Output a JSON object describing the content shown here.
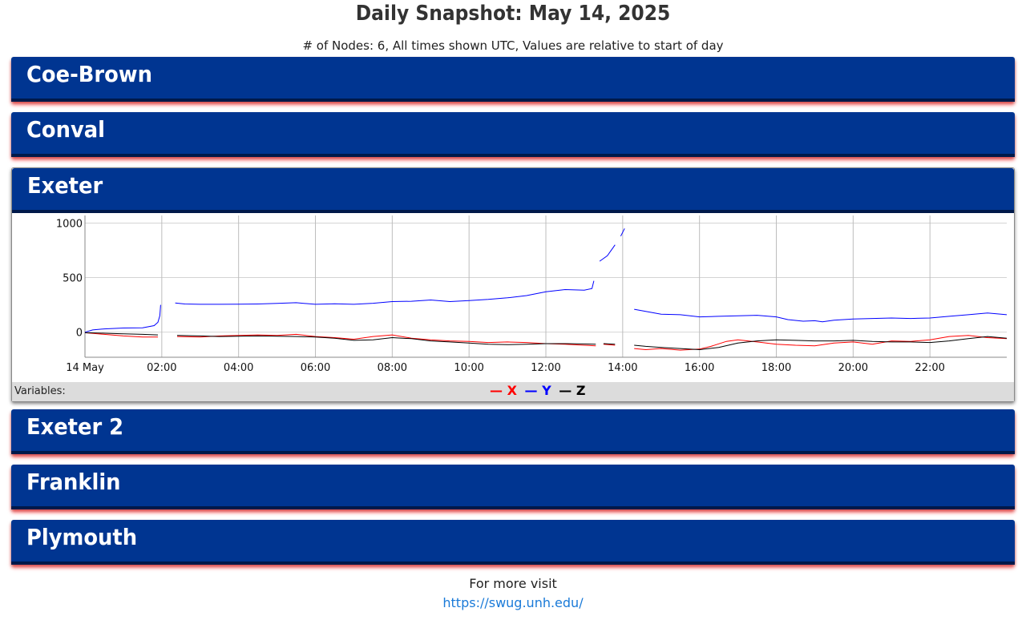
{
  "page": {
    "title": "Daily Snapshot: May 14, 2025",
    "subtitle": "# of Nodes: 6, All times shown UTC, Values are relative to start of day"
  },
  "panels": [
    {
      "name": "Coe-Brown"
    },
    {
      "name": "Conval"
    },
    {
      "name": "Exeter"
    },
    {
      "name": "Exeter 2"
    },
    {
      "name": "Franklin"
    },
    {
      "name": "Plymouth"
    }
  ],
  "legend": {
    "label": "Variables:",
    "items": [
      {
        "name": "X",
        "color": "#ff0000"
      },
      {
        "name": "Y",
        "color": "#0000ff"
      },
      {
        "name": "Z",
        "color": "#000000"
      }
    ]
  },
  "chart_data": {
    "type": "line",
    "xlabel": "",
    "ylabel": "",
    "xlim": [
      0,
      24
    ],
    "ylim": [
      -230,
      1040
    ],
    "y_ticks": [
      0,
      500,
      1000
    ],
    "x_tick_values": [
      0,
      2,
      4,
      6,
      8,
      10,
      12,
      14,
      16,
      18,
      20,
      22
    ],
    "x_tick_labels": [
      "14 May",
      "02:00",
      "04:00",
      "06:00",
      "08:00",
      "10:00",
      "12:00",
      "14:00",
      "16:00",
      "18:00",
      "20:00",
      "22:00"
    ],
    "grid": true,
    "series": [
      {
        "name": "Y",
        "color": "#0000ff",
        "segments": [
          [
            [
              0.0,
              0
            ],
            [
              0.2,
              20
            ],
            [
              0.5,
              30
            ],
            [
              1.0,
              38
            ],
            [
              1.5,
              40
            ],
            [
              1.8,
              60
            ],
            [
              1.9,
              90
            ],
            [
              1.95,
              150
            ],
            [
              1.97,
              250
            ]
          ],
          [
            [
              2.35,
              268
            ],
            [
              2.6,
              258
            ],
            [
              3.0,
              255
            ],
            [
              3.5,
              255
            ],
            [
              4.0,
              257
            ],
            [
              4.5,
              258
            ],
            [
              5.0,
              263
            ],
            [
              5.5,
              270
            ],
            [
              6.0,
              255
            ],
            [
              6.5,
              260
            ],
            [
              7.0,
              255
            ],
            [
              7.5,
              265
            ],
            [
              8.0,
              280
            ],
            [
              8.5,
              283
            ],
            [
              9.0,
              295
            ],
            [
              9.5,
              280
            ],
            [
              10.0,
              290
            ],
            [
              10.5,
              300
            ],
            [
              11.0,
              315
            ],
            [
              11.5,
              335
            ],
            [
              12.0,
              370
            ],
            [
              12.5,
              390
            ],
            [
              13.0,
              385
            ],
            [
              13.2,
              400
            ],
            [
              13.25,
              470
            ]
          ],
          [
            [
              13.4,
              650
            ],
            [
              13.6,
              700
            ],
            [
              13.8,
              800
            ]
          ],
          [
            [
              13.95,
              880
            ],
            [
              14.05,
              950
            ]
          ],
          [
            [
              14.3,
              210
            ],
            [
              14.6,
              190
            ],
            [
              15.0,
              165
            ],
            [
              15.5,
              160
            ],
            [
              16.0,
              140
            ],
            [
              16.5,
              145
            ],
            [
              17.0,
              150
            ],
            [
              17.5,
              155
            ],
            [
              18.0,
              140
            ],
            [
              18.3,
              115
            ],
            [
              18.7,
              100
            ],
            [
              19.0,
              105
            ],
            [
              19.2,
              95
            ],
            [
              19.5,
              110
            ],
            [
              20.0,
              120
            ],
            [
              20.5,
              125
            ],
            [
              21.0,
              130
            ],
            [
              21.5,
              125
            ],
            [
              22.0,
              130
            ],
            [
              22.5,
              145
            ],
            [
              23.0,
              160
            ],
            [
              23.5,
              175
            ],
            [
              24.0,
              160
            ]
          ]
        ]
      },
      {
        "name": "X",
        "color": "#ff0000",
        "segments": [
          [
            [
              0.0,
              -5
            ],
            [
              0.5,
              -20
            ],
            [
              1.0,
              -35
            ],
            [
              1.5,
              -45
            ],
            [
              1.9,
              -45
            ]
          ],
          [
            [
              2.4,
              -40
            ],
            [
              3.0,
              -45
            ],
            [
              3.5,
              -35
            ],
            [
              4.0,
              -30
            ],
            [
              4.5,
              -25
            ],
            [
              5.0,
              -30
            ],
            [
              5.5,
              -20
            ],
            [
              6.0,
              -40
            ],
            [
              6.5,
              -50
            ],
            [
              7.0,
              -65
            ],
            [
              7.5,
              -40
            ],
            [
              8.0,
              -25
            ],
            [
              8.5,
              -55
            ],
            [
              9.0,
              -70
            ],
            [
              9.5,
              -80
            ],
            [
              10.0,
              -85
            ],
            [
              10.5,
              -95
            ],
            [
              11.0,
              -90
            ],
            [
              11.5,
              -95
            ],
            [
              12.0,
              -105
            ],
            [
              12.5,
              -110
            ],
            [
              13.0,
              -120
            ],
            [
              13.3,
              -125
            ]
          ],
          [
            [
              13.5,
              -110
            ],
            [
              13.8,
              -120
            ]
          ],
          [
            [
              14.3,
              -150
            ],
            [
              14.6,
              -160
            ],
            [
              15.0,
              -150
            ],
            [
              15.5,
              -165
            ],
            [
              16.0,
              -155
            ],
            [
              16.3,
              -130
            ],
            [
              16.7,
              -85
            ],
            [
              17.0,
              -70
            ],
            [
              17.5,
              -90
            ],
            [
              18.0,
              -110
            ],
            [
              18.5,
              -120
            ],
            [
              19.0,
              -125
            ],
            [
              19.5,
              -100
            ],
            [
              20.0,
              -90
            ],
            [
              20.5,
              -110
            ],
            [
              21.0,
              -80
            ],
            [
              21.5,
              -85
            ],
            [
              22.0,
              -70
            ],
            [
              22.5,
              -40
            ],
            [
              23.0,
              -30
            ],
            [
              23.5,
              -50
            ],
            [
              24.0,
              -60
            ]
          ]
        ]
      },
      {
        "name": "Z",
        "color": "#000000",
        "segments": [
          [
            [
              0.0,
              -5
            ],
            [
              0.5,
              -10
            ],
            [
              1.0,
              -15
            ],
            [
              1.5,
              -20
            ],
            [
              1.9,
              -25
            ]
          ],
          [
            [
              2.4,
              -30
            ],
            [
              3.0,
              -35
            ],
            [
              3.5,
              -40
            ],
            [
              4.0,
              -38
            ],
            [
              4.5,
              -35
            ],
            [
              5.0,
              -38
            ],
            [
              5.5,
              -40
            ],
            [
              6.0,
              -45
            ],
            [
              6.5,
              -55
            ],
            [
              7.0,
              -75
            ],
            [
              7.5,
              -70
            ],
            [
              8.0,
              -50
            ],
            [
              8.5,
              -60
            ],
            [
              9.0,
              -80
            ],
            [
              9.5,
              -90
            ],
            [
              10.0,
              -100
            ],
            [
              10.5,
              -110
            ],
            [
              11.0,
              -115
            ],
            [
              11.5,
              -110
            ],
            [
              12.0,
              -105
            ],
            [
              12.5,
              -105
            ],
            [
              13.0,
              -108
            ],
            [
              13.3,
              -110
            ]
          ],
          [
            [
              13.5,
              -105
            ],
            [
              13.8,
              -110
            ]
          ],
          [
            [
              14.3,
              -120
            ],
            [
              14.6,
              -130
            ],
            [
              15.0,
              -140
            ],
            [
              15.5,
              -150
            ],
            [
              16.0,
              -160
            ],
            [
              16.5,
              -140
            ],
            [
              17.0,
              -100
            ],
            [
              17.5,
              -80
            ],
            [
              18.0,
              -70
            ],
            [
              18.5,
              -75
            ],
            [
              19.0,
              -80
            ],
            [
              19.5,
              -80
            ],
            [
              20.0,
              -75
            ],
            [
              20.5,
              -85
            ],
            [
              21.0,
              -90
            ],
            [
              21.5,
              -90
            ],
            [
              22.0,
              -95
            ],
            [
              22.5,
              -80
            ],
            [
              23.0,
              -60
            ],
            [
              23.5,
              -40
            ],
            [
              24.0,
              -55
            ]
          ]
        ]
      }
    ]
  },
  "footer": {
    "text": "For more visit",
    "link_text": "https://swug.unh.edu/"
  }
}
